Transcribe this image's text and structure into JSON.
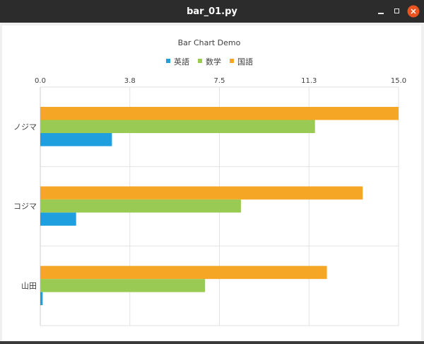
{
  "window": {
    "title": "bar_01.py",
    "close_color": "#e95420"
  },
  "chart_data": {
    "type": "bar",
    "orientation": "horizontal",
    "title": "Bar Chart Demo",
    "categories": [
      "ノジマ",
      "コジマ",
      "山田"
    ],
    "series": [
      {
        "name": "英語",
        "color": "#209fdf",
        "values": [
          3.0,
          1.5,
          0.1
        ]
      },
      {
        "name": "数学",
        "color": "#99ca53",
        "values": [
          11.5,
          8.4,
          6.9
        ]
      },
      {
        "name": "国語",
        "color": "#f6a625",
        "values": [
          15.0,
          13.5,
          12.0
        ]
      }
    ],
    "xlim": [
      0,
      15
    ],
    "x_ticks": [
      "0.0",
      "3.8",
      "7.5",
      "11.3",
      "15.0"
    ],
    "x_tick_values": [
      0,
      3.75,
      7.5,
      11.25,
      15
    ],
    "x_axis_position": "top",
    "legend_position": "top",
    "grid": true
  }
}
